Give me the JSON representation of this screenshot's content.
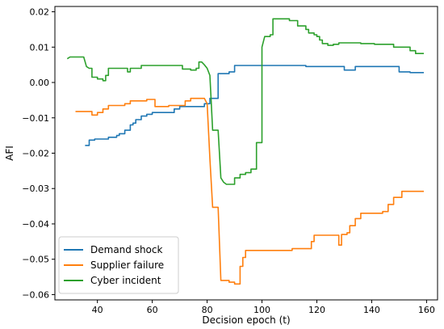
{
  "chart_data": {
    "type": "line",
    "xlabel": "Decision epoch (t)",
    "ylabel": "AFI",
    "xlim": [
      24.5,
      164
    ],
    "ylim": [
      -0.0615,
      0.0215
    ],
    "xticks": [
      40,
      60,
      80,
      100,
      120,
      140,
      160
    ],
    "yticks": [
      0.02,
      0.01,
      0.0,
      -0.01,
      -0.02,
      -0.03,
      -0.04,
      -0.05,
      -0.06
    ],
    "ytick_labels": [
      "0.02",
      "0.01",
      "0.00",
      "−0.01",
      "−0.02",
      "−0.03",
      "−0.04",
      "−0.05",
      "−0.06"
    ],
    "grid": false,
    "legend_position": "lower-left",
    "series": [
      {
        "name": "Demand shock",
        "color": "#1f77b4",
        "points": [
          [
            35.5,
            -0.0178
          ],
          [
            37,
            -0.0178
          ],
          [
            37,
            -0.0163
          ],
          [
            39,
            -0.0163
          ],
          [
            39,
            -0.016
          ],
          [
            44,
            -0.016
          ],
          [
            44,
            -0.0155
          ],
          [
            47,
            -0.0155
          ],
          [
            47,
            -0.015
          ],
          [
            48,
            -0.015
          ],
          [
            48,
            -0.0145
          ],
          [
            50,
            -0.0145
          ],
          [
            50,
            -0.0135
          ],
          [
            52,
            -0.0135
          ],
          [
            52,
            -0.012
          ],
          [
            53,
            -0.012
          ],
          [
            53,
            -0.0115
          ],
          [
            54,
            -0.0115
          ],
          [
            54,
            -0.0105
          ],
          [
            56,
            -0.0105
          ],
          [
            56,
            -0.0095
          ],
          [
            58,
            -0.0095
          ],
          [
            58,
            -0.009
          ],
          [
            60,
            -0.009
          ],
          [
            60,
            -0.0085
          ],
          [
            68,
            -0.0085
          ],
          [
            68,
            -0.0075
          ],
          [
            70,
            -0.0075
          ],
          [
            70,
            -0.0068
          ],
          [
            79,
            -0.0068
          ],
          [
            79,
            -0.006
          ],
          [
            81,
            -0.006
          ],
          [
            81,
            -0.0045
          ],
          [
            84,
            -0.0045
          ],
          [
            84,
            0.0025
          ],
          [
            88,
            0.0025
          ],
          [
            88,
            0.003
          ],
          [
            90,
            0.003
          ],
          [
            90,
            0.0048
          ],
          [
            116,
            0.0048
          ],
          [
            116,
            0.0045
          ],
          [
            130,
            0.0045
          ],
          [
            130,
            0.0035
          ],
          [
            134,
            0.0035
          ],
          [
            134,
            0.0045
          ],
          [
            150,
            0.0045
          ],
          [
            150,
            0.003
          ],
          [
            154,
            0.003
          ],
          [
            154,
            0.0028
          ],
          [
            159,
            0.0028
          ]
        ]
      },
      {
        "name": "Supplier failure",
        "color": "#ff7f0e",
        "points": [
          [
            32,
            -0.0082
          ],
          [
            38,
            -0.0082
          ],
          [
            38,
            -0.0092
          ],
          [
            40,
            -0.0092
          ],
          [
            40,
            -0.0085
          ],
          [
            42,
            -0.0085
          ],
          [
            42,
            -0.0075
          ],
          [
            44,
            -0.0075
          ],
          [
            44,
            -0.0065
          ],
          [
            50,
            -0.0065
          ],
          [
            50,
            -0.006
          ],
          [
            52,
            -0.006
          ],
          [
            52,
            -0.0052
          ],
          [
            58,
            -0.0052
          ],
          [
            58,
            -0.0048
          ],
          [
            61,
            -0.0048
          ],
          [
            61,
            -0.0068
          ],
          [
            66,
            -0.0068
          ],
          [
            66,
            -0.0065
          ],
          [
            72,
            -0.0065
          ],
          [
            72,
            -0.0052
          ],
          [
            74,
            -0.0052
          ],
          [
            74,
            -0.0045
          ],
          [
            79,
            -0.0045
          ],
          [
            80,
            -0.006
          ],
          [
            81,
            -0.0215
          ],
          [
            82,
            -0.0353
          ],
          [
            84,
            -0.0353
          ],
          [
            85,
            -0.056
          ],
          [
            88,
            -0.056
          ],
          [
            88,
            -0.0565
          ],
          [
            90,
            -0.0565
          ],
          [
            90,
            -0.057
          ],
          [
            92,
            -0.057
          ],
          [
            92,
            -0.052
          ],
          [
            93,
            -0.052
          ],
          [
            93,
            -0.0495
          ],
          [
            94,
            -0.0495
          ],
          [
            94,
            -0.0475
          ],
          [
            111,
            -0.0475
          ],
          [
            111,
            -0.047
          ],
          [
            118,
            -0.047
          ],
          [
            118,
            -0.045
          ],
          [
            119,
            -0.045
          ],
          [
            119,
            -0.0432
          ],
          [
            128,
            -0.0432
          ],
          [
            128,
            -0.046
          ],
          [
            129,
            -0.046
          ],
          [
            129,
            -0.043
          ],
          [
            131,
            -0.043
          ],
          [
            131,
            -0.0425
          ],
          [
            132,
            -0.0425
          ],
          [
            132,
            -0.0405
          ],
          [
            134,
            -0.0405
          ],
          [
            134,
            -0.0385
          ],
          [
            136,
            -0.0385
          ],
          [
            136,
            -0.037
          ],
          [
            144,
            -0.037
          ],
          [
            144,
            -0.0365
          ],
          [
            146,
            -0.0365
          ],
          [
            146,
            -0.0345
          ],
          [
            148,
            -0.0345
          ],
          [
            148,
            -0.0325
          ],
          [
            151,
            -0.0325
          ],
          [
            151,
            -0.0308
          ],
          [
            159,
            -0.0308
          ]
        ]
      },
      {
        "name": "Cyber incident",
        "color": "#2ca02c",
        "points": [
          [
            29,
            0.0067
          ],
          [
            30,
            0.0072
          ],
          [
            35,
            0.0072
          ],
          [
            36,
            0.0045
          ],
          [
            37,
            0.004
          ],
          [
            38,
            0.004
          ],
          [
            38,
            0.0015
          ],
          [
            40,
            0.0015
          ],
          [
            40,
            0.001
          ],
          [
            42,
            0.001
          ],
          [
            42,
            0.0005
          ],
          [
            43,
            0.0005
          ],
          [
            43,
            0.002
          ],
          [
            44,
            0.002
          ],
          [
            44,
            0.004
          ],
          [
            51,
            0.004
          ],
          [
            51,
            0.003
          ],
          [
            52,
            0.003
          ],
          [
            52,
            0.004
          ],
          [
            56,
            0.004
          ],
          [
            56,
            0.0048
          ],
          [
            71,
            0.0048
          ],
          [
            71,
            0.0038
          ],
          [
            74,
            0.0038
          ],
          [
            74,
            0.0035
          ],
          [
            76,
            0.0035
          ],
          [
            76,
            0.004
          ],
          [
            77,
            0.004
          ],
          [
            77,
            0.0058
          ],
          [
            78,
            0.0058
          ],
          [
            79,
            0.005
          ],
          [
            80,
            0.004
          ],
          [
            81,
            0.002
          ],
          [
            82,
            -0.0135
          ],
          [
            84,
            -0.0135
          ],
          [
            85,
            -0.027
          ],
          [
            86,
            -0.0282
          ],
          [
            87,
            -0.0288
          ],
          [
            90,
            -0.0288
          ],
          [
            90,
            -0.027
          ],
          [
            92,
            -0.027
          ],
          [
            92,
            -0.026
          ],
          [
            94,
            -0.026
          ],
          [
            94,
            -0.0255
          ],
          [
            96,
            -0.0255
          ],
          [
            96,
            -0.0245
          ],
          [
            98,
            -0.0245
          ],
          [
            98,
            -0.017
          ],
          [
            100,
            -0.017
          ],
          [
            100,
            0.01
          ],
          [
            101,
            0.013
          ],
          [
            103,
            0.013
          ],
          [
            103,
            0.0135
          ],
          [
            104,
            0.0135
          ],
          [
            104,
            0.018
          ],
          [
            110,
            0.018
          ],
          [
            110,
            0.0175
          ],
          [
            113,
            0.0175
          ],
          [
            113,
            0.016
          ],
          [
            116,
            0.016
          ],
          [
            116,
            0.015
          ],
          [
            117,
            0.015
          ],
          [
            117,
            0.014
          ],
          [
            119,
            0.014
          ],
          [
            119,
            0.0135
          ],
          [
            120,
            0.0135
          ],
          [
            120,
            0.013
          ],
          [
            121,
            0.013
          ],
          [
            121,
            0.012
          ],
          [
            122,
            0.012
          ],
          [
            122,
            0.011
          ],
          [
            124,
            0.011
          ],
          [
            124,
            0.0105
          ],
          [
            126,
            0.0105
          ],
          [
            126,
            0.0108
          ],
          [
            128,
            0.0108
          ],
          [
            128,
            0.0112
          ],
          [
            136,
            0.0112
          ],
          [
            136,
            0.011
          ],
          [
            141,
            0.011
          ],
          [
            141,
            0.0108
          ],
          [
            148,
            0.0108
          ],
          [
            148,
            0.01
          ],
          [
            154,
            0.01
          ],
          [
            154,
            0.009
          ],
          [
            156,
            0.009
          ],
          [
            156,
            0.0082
          ],
          [
            159,
            0.0082
          ]
        ]
      }
    ]
  }
}
